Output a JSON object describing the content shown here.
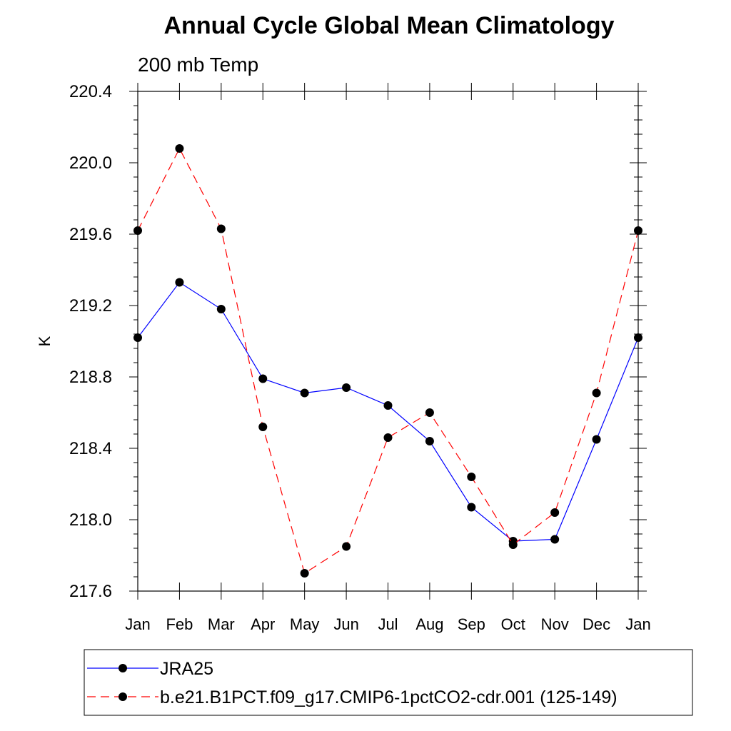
{
  "chart_data": {
    "type": "line",
    "title": "Annual Cycle Global Mean Climatology",
    "subtitle": "200 mb Temp",
    "xlabel": "",
    "ylabel": "K",
    "categories": [
      "Jan",
      "Feb",
      "Mar",
      "Apr",
      "May",
      "Jun",
      "Jul",
      "Aug",
      "Sep",
      "Oct",
      "Nov",
      "Dec",
      "Jan"
    ],
    "ylim": [
      217.6,
      220.4
    ],
    "yticks": [
      "217.6",
      "218.0",
      "218.4",
      "218.8",
      "219.2",
      "219.6",
      "220.0",
      "220.4"
    ],
    "series": [
      {
        "name": "JRA25",
        "color": "#0000ff",
        "line_style": "solid",
        "marker": "filled-circle",
        "values": [
          219.02,
          219.33,
          219.18,
          218.79,
          218.71,
          218.74,
          218.64,
          218.44,
          218.07,
          217.88,
          217.89,
          218.45,
          219.02
        ]
      },
      {
        "name": "b.e21.B1PCT.f09_g17.CMIP6-1pctCO2-cdr.001 (125-149)",
        "color": "#ff0000",
        "line_style": "dashed",
        "marker": "filled-circle",
        "values": [
          219.62,
          220.08,
          219.63,
          218.52,
          217.7,
          217.85,
          218.46,
          218.6,
          218.24,
          217.86,
          218.04,
          218.71,
          219.62
        ]
      }
    ],
    "legend_position": "bottom",
    "grid": false
  }
}
